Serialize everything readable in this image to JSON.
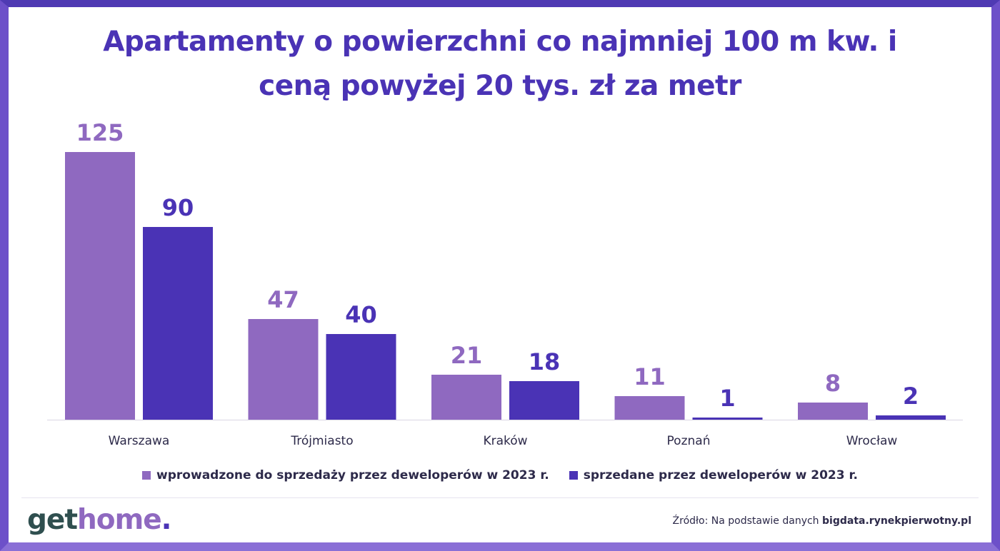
{
  "title_lines": [
    "Apartamenty o powierzchni co najmniej 100 m kw. i",
    "ceną powyżej 20 tys. zł za metr"
  ],
  "chart_data": {
    "type": "bar",
    "title": "Apartamenty o powierzchni co najmniej 100 m kw. i ceną powyżej 20 tys. zł za metr",
    "categories": [
      "Warszawa",
      "Trójmiasto",
      "Kraków",
      "Poznań",
      "Wrocław"
    ],
    "series": [
      {
        "name": "wprowadzone do sprzedaży przez deweloperów w 2023 r.",
        "values": [
          125,
          47,
          21,
          11,
          8
        ],
        "color": "#8f69c0"
      },
      {
        "name": "sprzedane przez deweloperów w 2023 r.",
        "values": [
          90,
          40,
          18,
          1,
          2
        ],
        "color": "#4a33b5"
      }
    ],
    "ylim": [
      0,
      125
    ],
    "xlabel": "",
    "ylabel": "",
    "legend_position": "bottom"
  },
  "legend": [
    {
      "label": "wprowadzone do sprzedaży przez deweloperów w 2023 r.",
      "color": "#8f69c0"
    },
    {
      "label": "sprzedane przez deweloperów w 2023 r.",
      "color": "#4a33b5"
    }
  ],
  "logo": {
    "part1": "get",
    "part2": "home",
    "part3": ".",
    "color1": "#2f4f4f",
    "color2": "#8f69c0"
  },
  "source": {
    "prefix": "Źródło: Na podstawie danych",
    "site": "bigdata.rynekpierwotny.pl"
  }
}
